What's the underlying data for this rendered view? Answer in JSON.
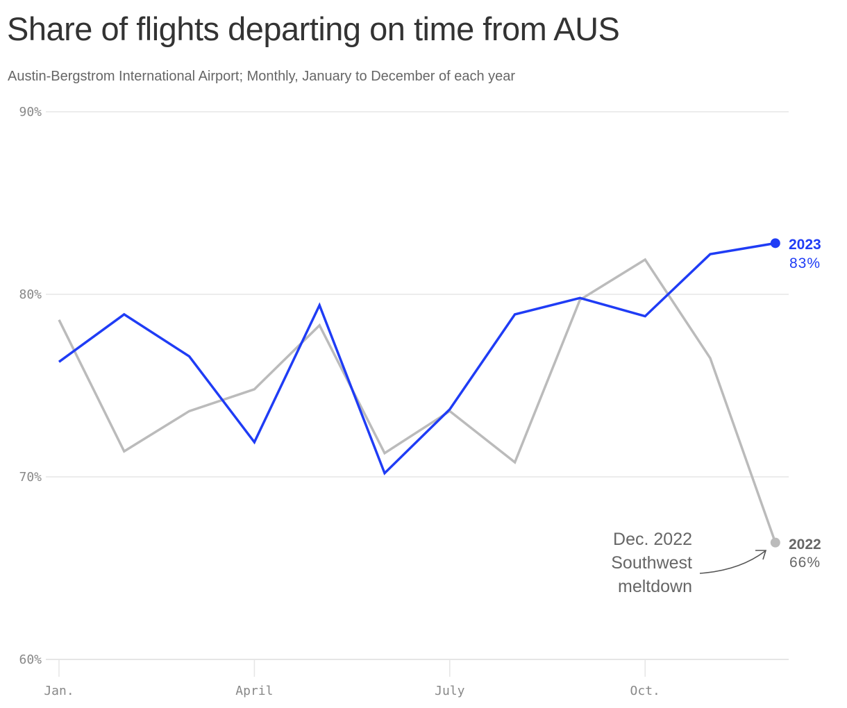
{
  "header": {
    "title": "Share of flights departing on time from AUS",
    "subtitle": "Austin-Bergstrom International Airport; Monthly, January to December of each year"
  },
  "axes": {
    "y_ticks": [
      "90%",
      "80%",
      "70%",
      "60%"
    ],
    "x_ticks": [
      "Jan.",
      "April",
      "July",
      "Oct."
    ]
  },
  "labels": {
    "series_2023": {
      "year": "2023",
      "value": "83%"
    },
    "series_2022": {
      "year": "2022",
      "value": "66%"
    }
  },
  "annotation": {
    "line1": "Dec. 2022",
    "line2": "Southwest",
    "line3": "meltdown"
  },
  "colors": {
    "series_2023": "#1f3cf5",
    "series_2022": "#bbbbbb",
    "grid": "#e5e5e5",
    "text_dark": "#333333",
    "text_muted": "#666666",
    "tick": "#888888"
  },
  "chart_data": {
    "type": "line",
    "title": "Share of flights departing on time from AUS",
    "subtitle": "Austin-Bergstrom International Airport; Monthly, January to December of each year",
    "xlabel": "",
    "ylabel": "",
    "x": [
      "Jan",
      "Feb",
      "Mar",
      "Apr",
      "May",
      "Jun",
      "Jul",
      "Aug",
      "Sep",
      "Oct",
      "Nov",
      "Dec"
    ],
    "x_tick_labels": [
      "Jan.",
      "April",
      "July",
      "Oct."
    ],
    "y_tick_labels": [
      "60%",
      "70%",
      "80%",
      "90%"
    ],
    "ylim": [
      60,
      90
    ],
    "grid": true,
    "legend": "direct labels at line ends (right)",
    "series": [
      {
        "name": "2023",
        "color": "#1f3cf5",
        "values": [
          76.3,
          78.9,
          76.6,
          71.9,
          79.4,
          70.2,
          73.7,
          78.9,
          79.8,
          78.8,
          82.2,
          82.8
        ],
        "end_label": "83%"
      },
      {
        "name": "2022",
        "color": "#bbbbbb",
        "values": [
          78.6,
          71.4,
          73.6,
          74.8,
          78.3,
          71.3,
          73.6,
          70.8,
          79.7,
          81.9,
          76.5,
          66.4
        ],
        "end_label": "66%"
      }
    ],
    "annotations": [
      {
        "text": "Dec. 2022 Southwest meltdown",
        "target": {
          "series": "2022",
          "x": "Dec"
        }
      }
    ]
  }
}
